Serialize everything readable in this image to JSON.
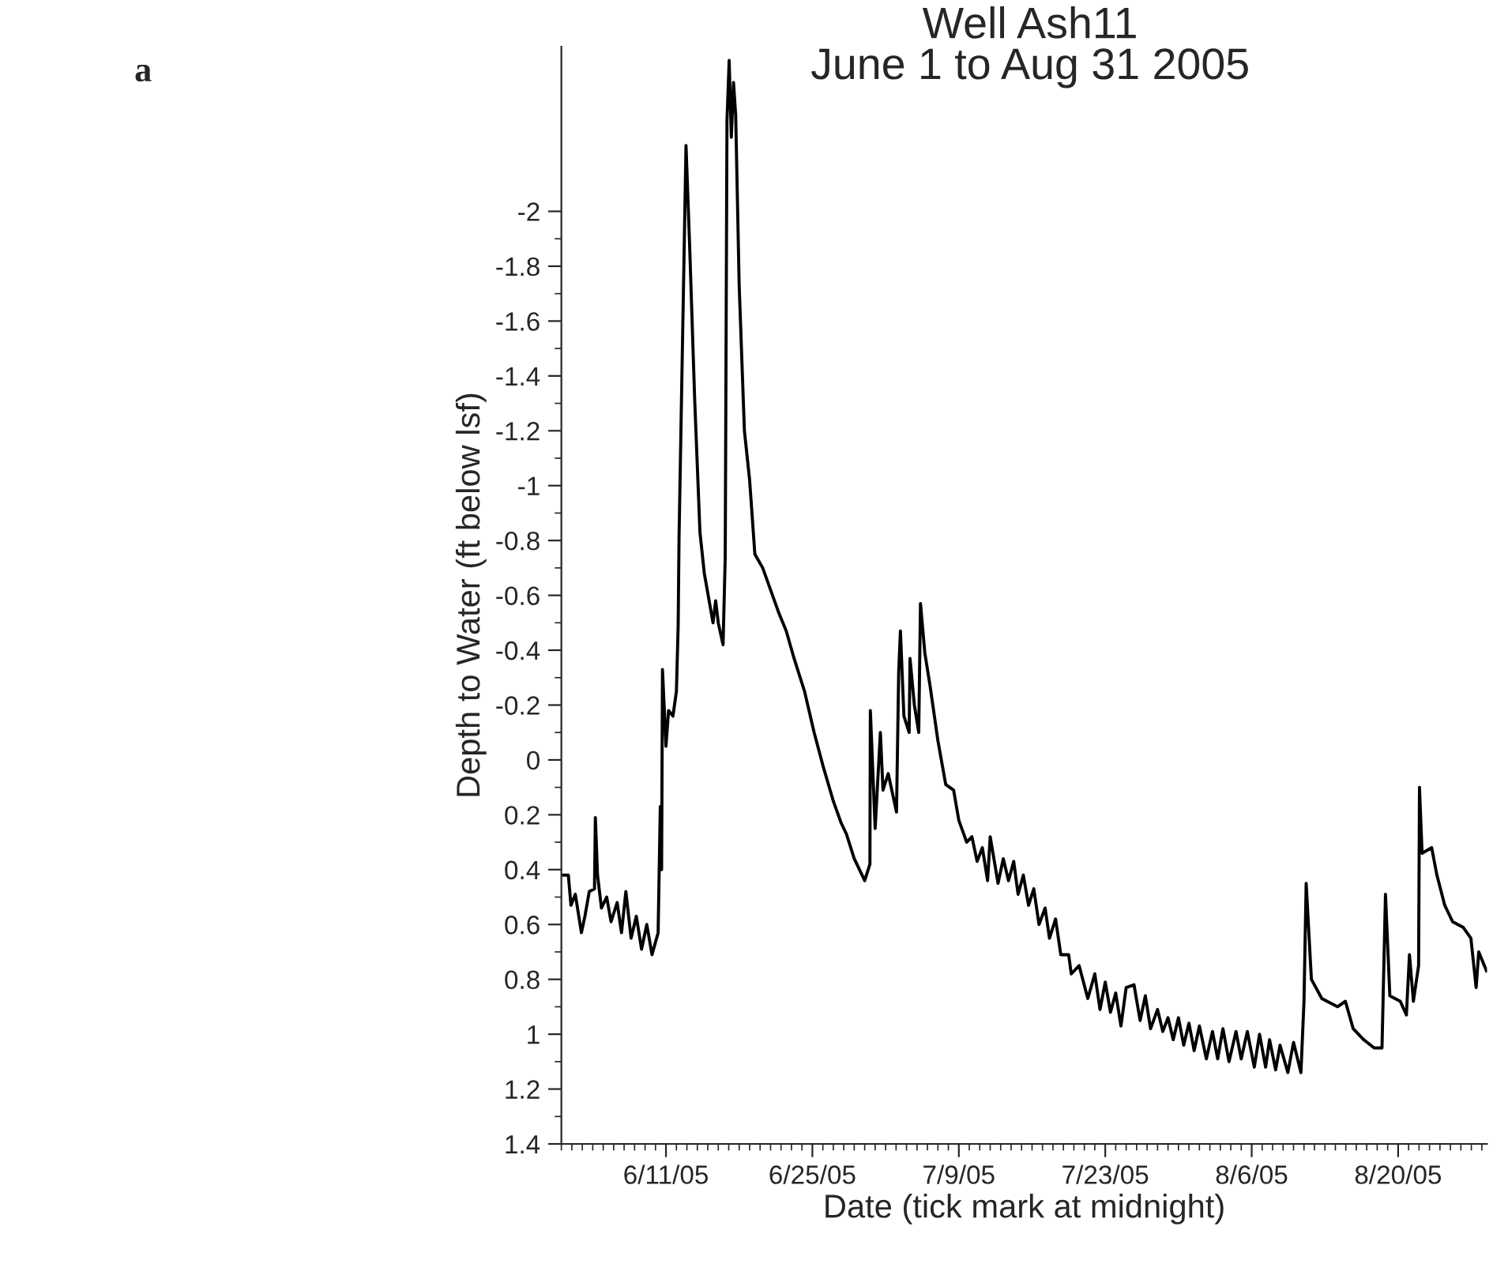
{
  "chart_data": {
    "type": "line",
    "title": "Well Ash11\nJune 1 to Aug 31 2005",
    "xlabel": "Date (tick mark at midnight)",
    "ylabel": "Depth to Water (ft below lsf)",
    "annotations": [
      "a"
    ],
    "xlim": [
      "2005-06-01T00:00",
      "2005-08-28T12:00"
    ],
    "xticks": [
      {
        "value": "2005-06-11",
        "label": "6/11/05"
      },
      {
        "value": "2005-06-25",
        "label": "6/25/05"
      },
      {
        "value": "2005-07-09",
        "label": "7/9/05"
      },
      {
        "value": "2005-07-23",
        "label": "7/23/05"
      },
      {
        "value": "2005-08-06",
        "label": "8/6/05"
      },
      {
        "value": "2005-08-20",
        "label": "8/20/05"
      }
    ],
    "ylim": [
      1.4,
      -2.6
    ],
    "yticks": [
      -2,
      -1.8,
      -1.6,
      -1.4,
      -1.2,
      -1,
      -0.8,
      -0.6,
      -0.4,
      -0.2,
      0,
      0.2,
      0.4,
      0.6,
      0.8,
      1,
      1.2,
      1.4
    ],
    "grid": false,
    "legend": false,
    "marker": "none",
    "line_style": "solid",
    "series": [
      {
        "color": "#000000",
        "x": [
          "2005-06-01T04:00",
          "2005-06-01T16:00",
          "2005-06-01T22:00",
          "2005-06-02T08:00",
          "2005-06-02T22:00",
          "2005-06-03T06:00",
          "2005-06-03T16:00",
          "2005-06-04T04:00",
          "2005-06-04T06:00",
          "2005-06-04T11:00",
          "2005-06-04T20:00",
          "2005-06-05T08:00",
          "2005-06-05T18:00",
          "2005-06-06T08:00",
          "2005-06-06T18:00",
          "2005-06-07T04:00",
          "2005-06-07T16:00",
          "2005-06-08T04:00",
          "2005-06-08T16:00",
          "2005-06-09T04:00",
          "2005-06-09T16:00",
          "2005-06-10T06:00",
          "2005-06-10T11:00",
          "2005-06-10T14:00",
          "2005-06-10T16:00",
          "2005-06-11T00:00",
          "2005-06-11T06:00",
          "2005-06-11T16:00",
          "2005-06-12T00:00",
          "2005-06-12T04:00",
          "2005-06-12T06:00",
          "2005-06-12T22:00",
          "2005-06-13T06:00",
          "2005-06-13T18:00",
          "2005-06-14T06:00",
          "2005-06-14T16:00",
          "2005-06-15T12:00",
          "2005-06-15T18:00",
          "2005-06-16T00:00",
          "2005-06-16T11:00",
          "2005-06-16T16:00",
          "2005-06-16T20:00",
          "2005-06-17T01:00",
          "2005-06-17T06:00",
          "2005-06-17T11:00",
          "2005-06-17T16:00",
          "2005-06-18T00:00",
          "2005-06-18T12:00",
          "2005-06-19T00:00",
          "2005-06-19T12:00",
          "2005-06-20T06:00",
          "2005-06-21T00:00",
          "2005-06-21T18:00",
          "2005-06-22T12:00",
          "2005-06-23T06:00",
          "2005-06-24T06:00",
          "2005-06-25T04:00",
          "2005-06-26T00:00",
          "2005-06-27T00:00",
          "2005-06-27T18:00",
          "2005-06-28T06:00",
          "2005-06-29T00:00",
          "2005-06-30T00:00",
          "2005-06-30T12:00",
          "2005-06-30T13:00",
          "2005-07-01T00:00",
          "2005-07-01T12:00",
          "2005-07-01T18:00",
          "2005-07-02T06:00",
          "2005-07-03T01:00",
          "2005-07-03T06:00",
          "2005-07-03T10:00",
          "2005-07-03T18:00",
          "2005-07-04T06:00",
          "2005-07-04T08:00",
          "2005-07-04T18:00",
          "2005-07-05T04:00",
          "2005-07-05T08:00",
          "2005-07-05T18:00",
          "2005-07-06T06:00",
          "2005-07-07T00:00",
          "2005-07-07T18:00",
          "2005-07-08T12:00",
          "2005-07-09T00:00",
          "2005-07-09T18:00",
          "2005-07-10T06:00",
          "2005-07-10T18:00",
          "2005-07-11T06:00",
          "2005-07-11T18:00",
          "2005-07-12T00:00",
          "2005-07-12T18:00",
          "2005-07-13T06:00",
          "2005-07-13T18:00",
          "2005-07-14T06:00",
          "2005-07-14T16:00",
          "2005-07-15T04:00",
          "2005-07-15T16:00",
          "2005-07-16T04:00",
          "2005-07-16T16:00",
          "2005-07-17T06:00",
          "2005-07-17T16:00",
          "2005-07-18T06:00",
          "2005-07-18T18:00",
          "2005-07-19T12:00",
          "2005-07-19T18:00",
          "2005-07-20T12:00",
          "2005-07-21T08:00",
          "2005-07-22T00:00",
          "2005-07-22T12:00",
          "2005-07-23T00:00",
          "2005-07-23T12:00",
          "2005-07-24T00:00",
          "2005-07-24T12:00",
          "2005-07-25T00:00",
          "2005-07-25T18:00",
          "2005-07-26T08:00",
          "2005-07-26T20:00",
          "2005-07-27T08:00",
          "2005-07-28T00:00",
          "2005-07-28T12:00",
          "2005-07-29T00:00",
          "2005-07-29T12:00",
          "2005-07-30T00:00",
          "2005-07-30T12:00",
          "2005-07-31T00:00",
          "2005-07-31T12:00",
          "2005-08-01T00:00",
          "2005-08-01T16:00",
          "2005-08-02T06:00",
          "2005-08-02T18:00",
          "2005-08-03T06:00",
          "2005-08-03T20:00",
          "2005-08-04T12:00",
          "2005-08-05T00:00",
          "2005-08-05T14:00",
          "2005-08-06T06:00",
          "2005-08-06T18:00",
          "2005-08-07T08:00",
          "2005-08-07T17:00",
          "2005-08-08T07:00",
          "2005-08-08T17:00",
          "2005-08-09T11:00",
          "2005-08-10T00:00",
          "2005-08-10T17:00",
          "2005-08-11T00:00",
          "2005-08-11T05:00",
          "2005-08-11T17:00",
          "2005-08-12T17:00",
          "2005-08-14T05:00",
          "2005-08-14T23:00",
          "2005-08-15T17:00",
          "2005-08-16T17:00",
          "2005-08-17T17:00",
          "2005-08-18T11:00",
          "2005-08-18T19:00",
          "2005-08-19T05:00",
          "2005-08-20T05:00",
          "2005-08-20T19:00",
          "2005-08-21T02:00",
          "2005-08-21T11:00",
          "2005-08-21T23:00",
          "2005-08-22T01:00",
          "2005-08-22T07:00",
          "2005-08-23T05:00",
          "2005-08-23T17:00",
          "2005-08-24T11:00",
          "2005-08-25T05:00",
          "2005-08-26T05:00",
          "2005-08-26T23:00",
          "2005-08-27T11:00",
          "2005-08-27T17:00",
          "2005-08-28T11:00"
        ],
        "values": [
          0.42,
          0.42,
          0.53,
          0.49,
          0.63,
          0.57,
          0.48,
          0.47,
          0.21,
          0.42,
          0.54,
          0.5,
          0.59,
          0.52,
          0.63,
          0.48,
          0.65,
          0.57,
          0.69,
          0.6,
          0.71,
          0.63,
          0.17,
          0.4,
          -0.33,
          -0.05,
          -0.18,
          -0.16,
          -0.25,
          -0.49,
          -0.81,
          -2.24,
          -1.89,
          -1.31,
          -0.83,
          -0.68,
          -0.5,
          -0.58,
          -0.5,
          -0.42,
          -0.74,
          -2.33,
          -2.55,
          -2.27,
          -2.47,
          -2.35,
          -1.73,
          -1.2,
          -1.02,
          -0.75,
          -0.7,
          -0.62,
          -0.54,
          -0.47,
          -0.37,
          -0.25,
          -0.1,
          0.02,
          0.15,
          0.23,
          0.27,
          0.36,
          0.44,
          0.38,
          -0.18,
          0.25,
          -0.1,
          0.11,
          0.05,
          0.19,
          -0.32,
          -0.47,
          -0.16,
          -0.1,
          -0.37,
          -0.2,
          -0.1,
          -0.57,
          -0.39,
          -0.27,
          -0.07,
          0.09,
          0.11,
          0.22,
          0.3,
          0.28,
          0.37,
          0.32,
          0.44,
          0.28,
          0.45,
          0.36,
          0.44,
          0.37,
          0.49,
          0.42,
          0.53,
          0.47,
          0.6,
          0.54,
          0.65,
          0.58,
          0.71,
          0.71,
          0.78,
          0.75,
          0.87,
          0.78,
          0.91,
          0.81,
          0.92,
          0.85,
          0.97,
          0.83,
          0.82,
          0.95,
          0.86,
          0.98,
          0.91,
          0.99,
          0.94,
          1.02,
          0.94,
          1.04,
          0.96,
          1.06,
          0.97,
          1.09,
          0.99,
          1.09,
          0.98,
          1.1,
          0.99,
          1.09,
          0.99,
          1.12,
          1.0,
          1.12,
          1.02,
          1.13,
          1.04,
          1.14,
          1.03,
          1.14,
          0.88,
          0.45,
          0.8,
          0.87,
          0.9,
          0.88,
          0.98,
          1.02,
          1.05,
          1.05,
          0.49,
          0.86,
          0.88,
          0.93,
          0.71,
          0.88,
          0.75,
          0.1,
          0.34,
          0.32,
          0.42,
          0.53,
          0.59,
          0.61,
          0.65,
          0.83,
          0.7,
          0.77
        ]
      }
    ]
  }
}
